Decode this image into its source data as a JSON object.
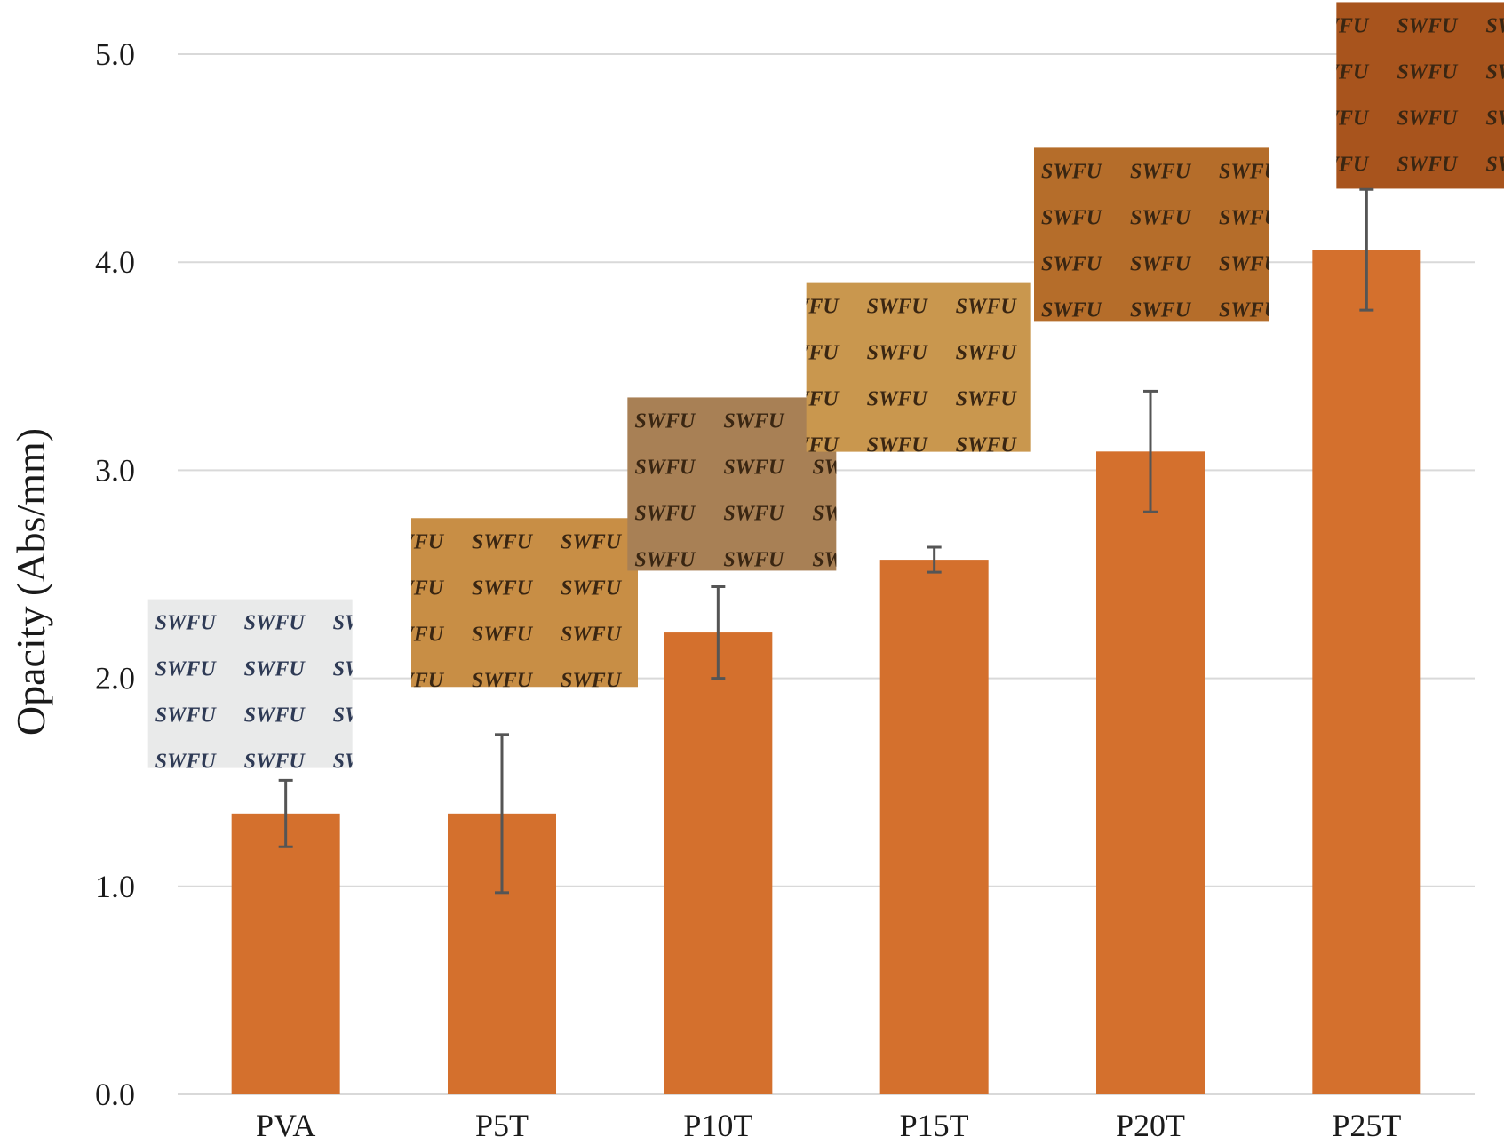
{
  "chart_data": {
    "type": "bar",
    "categories": [
      "PVA",
      "P5T",
      "P10T",
      "P15T",
      "P20T",
      "P25T"
    ],
    "values": [
      1.35,
      1.35,
      2.22,
      2.57,
      3.09,
      4.06
    ],
    "error": [
      0.16,
      0.38,
      0.22,
      0.06,
      0.29,
      0.29
    ],
    "ylim": [
      0,
      5
    ],
    "yticks": [
      0,
      1,
      2,
      3,
      4,
      5
    ],
    "ytick_labels": [
      "0.0",
      "1.0",
      "2.0",
      "3.0",
      "4.0",
      "5.0"
    ],
    "ylabel": "Opacity (Abs/mm)",
    "xlabel": "",
    "title": "",
    "grid": true,
    "legend": "none",
    "bar_color": "#D4702D",
    "error_bar_color": "#555555",
    "gridline_color": "#D9D9D9",
    "film_images": {
      "text": "SWFU",
      "colors": [
        "#E9EAEA",
        "#C88E45",
        "#A88055",
        "#C9974E",
        "#B56D2A",
        "#A8541D"
      ]
    }
  }
}
